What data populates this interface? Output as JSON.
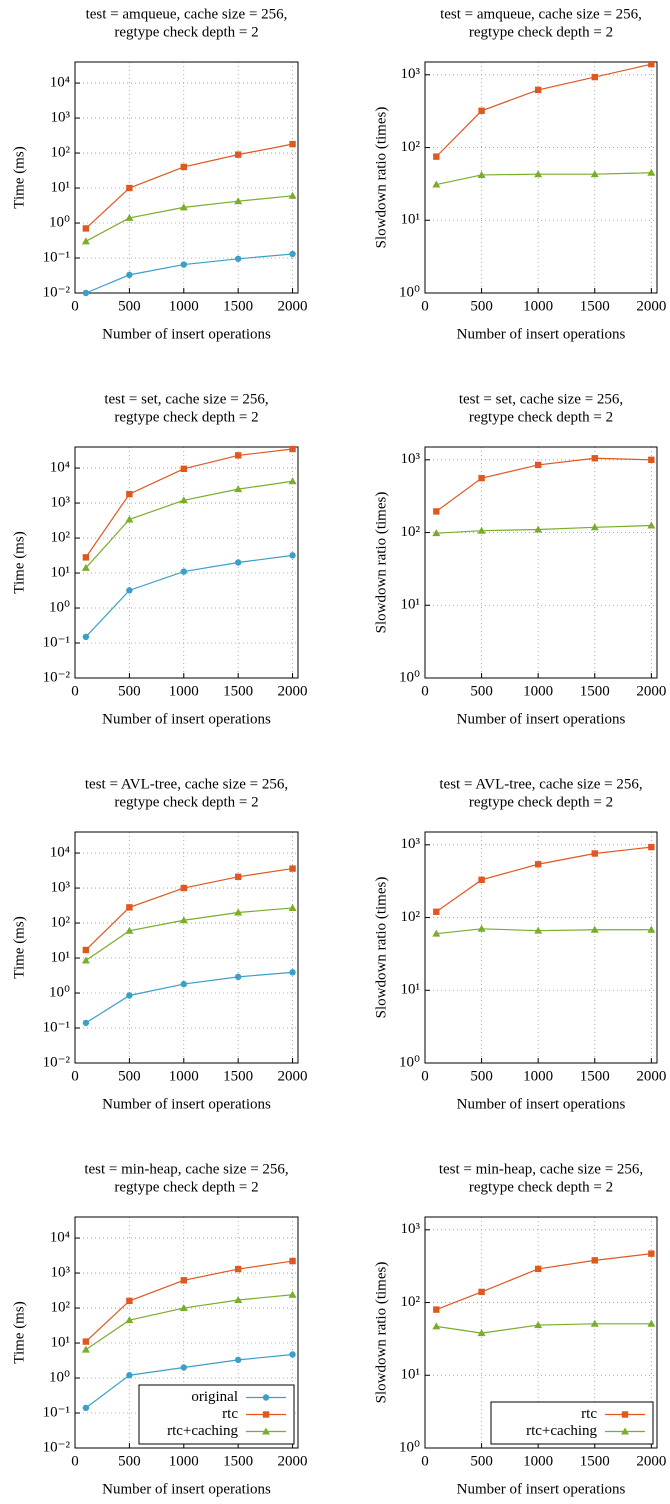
{
  "chart_data": [
    {
      "type": "line",
      "title": [
        "test = amqueue, cache size = 256,",
        "regtype check depth = 2"
      ],
      "xlabel": "Number of insert operations",
      "ylabel": "Time (ms)",
      "log_y": true,
      "grid": true,
      "x": [
        100,
        500,
        1000,
        1500,
        2000
      ],
      "xlim": [
        0,
        2050
      ],
      "xticks": [
        0,
        500,
        1000,
        1500,
        2000
      ],
      "ylim": [
        0.01,
        40000
      ],
      "yticks": [
        {
          "value": 0.01,
          "label": "10⁻²"
        },
        {
          "value": 0.1,
          "label": "10⁻¹"
        },
        {
          "value": 1,
          "label": "10⁰"
        },
        {
          "value": 10,
          "label": "10¹"
        },
        {
          "value": 100,
          "label": "10²"
        },
        {
          "value": 1000,
          "label": "10³"
        },
        {
          "value": 10000,
          "label": "10⁴"
        }
      ],
      "series": [
        {
          "color": "#3a9fc9",
          "marker": "circle",
          "values": [
            0.01,
            0.033,
            0.065,
            0.095,
            0.13
          ]
        },
        {
          "color": "#e0571f",
          "marker": "square",
          "values": [
            0.7,
            10,
            40,
            90,
            180
          ]
        },
        {
          "color": "#7aad2a",
          "marker": "triangle",
          "values": [
            0.3,
            1.4,
            2.8,
            4.2,
            6
          ]
        }
      ]
    },
    {
      "type": "line",
      "title": [
        "test = amqueue, cache size = 256,",
        "regtype check depth = 2"
      ],
      "xlabel": "Number of insert operations",
      "ylabel": "Slowdown ratio (times)",
      "log_y": true,
      "grid": true,
      "x": [
        100,
        500,
        1000,
        1500,
        2000
      ],
      "xlim": [
        0,
        2050
      ],
      "xticks": [
        0,
        500,
        1000,
        1500,
        2000
      ],
      "ylim": [
        1,
        1500
      ],
      "yticks": [
        {
          "value": 1,
          "label": "10⁰"
        },
        {
          "value": 10,
          "label": "10¹"
        },
        {
          "value": 100,
          "label": "10²"
        },
        {
          "value": 1000,
          "label": "10³"
        }
      ],
      "series": [
        {
          "color": "#e0571f",
          "marker": "square",
          "values": [
            75,
            320,
            620,
            930,
            1400
          ]
        },
        {
          "color": "#7aad2a",
          "marker": "triangle",
          "values": [
            31,
            42,
            43,
            43,
            45
          ]
        }
      ]
    },
    {
      "type": "line",
      "title": [
        "test = set, cache size = 256,",
        "regtype check depth = 2"
      ],
      "xlabel": "Number of insert operations",
      "ylabel": "Time (ms)",
      "log_y": true,
      "grid": true,
      "x": [
        100,
        500,
        1000,
        1500,
        2000
      ],
      "xlim": [
        0,
        2050
      ],
      "xticks": [
        0,
        500,
        1000,
        1500,
        2000
      ],
      "ylim": [
        0.01,
        40000
      ],
      "yticks": [
        {
          "value": 0.01,
          "label": "10⁻²"
        },
        {
          "value": 0.1,
          "label": "10⁻¹"
        },
        {
          "value": 1,
          "label": "10⁰"
        },
        {
          "value": 10,
          "label": "10¹"
        },
        {
          "value": 100,
          "label": "10²"
        },
        {
          "value": 1000,
          "label": "10³"
        },
        {
          "value": 10000,
          "label": "10⁴"
        }
      ],
      "series": [
        {
          "color": "#3a9fc9",
          "marker": "circle",
          "values": [
            0.15,
            3.2,
            11,
            20,
            32
          ]
        },
        {
          "color": "#e0571f",
          "marker": "square",
          "values": [
            28,
            1800,
            9500,
            23000,
            35000
          ]
        },
        {
          "color": "#7aad2a",
          "marker": "triangle",
          "values": [
            14,
            340,
            1200,
            2500,
            4200
          ]
        }
      ]
    },
    {
      "type": "line",
      "title": [
        "test = set, cache size = 256,",
        "regtype check depth = 2"
      ],
      "xlabel": "Number of insert operations",
      "ylabel": "Slowdown ratio (times)",
      "log_y": true,
      "grid": true,
      "x": [
        100,
        500,
        1000,
        1500,
        2000
      ],
      "xlim": [
        0,
        2050
      ],
      "xticks": [
        0,
        500,
        1000,
        1500,
        2000
      ],
      "ylim": [
        1,
        1500
      ],
      "yticks": [
        {
          "value": 1,
          "label": "10⁰"
        },
        {
          "value": 10,
          "label": "10¹"
        },
        {
          "value": 100,
          "label": "10²"
        },
        {
          "value": 1000,
          "label": "10³"
        }
      ],
      "series": [
        {
          "color": "#e0571f",
          "marker": "square",
          "values": [
            195,
            560,
            850,
            1050,
            1000
          ]
        },
        {
          "color": "#7aad2a",
          "marker": "triangle",
          "values": [
            98,
            106,
            110,
            118,
            125
          ]
        }
      ]
    },
    {
      "type": "line",
      "title": [
        "test = AVL-tree, cache size = 256,",
        "regtype check depth = 2"
      ],
      "xlabel": "Number of insert operations",
      "ylabel": "Time (ms)",
      "log_y": true,
      "grid": true,
      "x": [
        100,
        500,
        1000,
        1500,
        2000
      ],
      "xlim": [
        0,
        2050
      ],
      "xticks": [
        0,
        500,
        1000,
        1500,
        2000
      ],
      "ylim": [
        0.01,
        40000
      ],
      "yticks": [
        {
          "value": 0.01,
          "label": "10⁻²"
        },
        {
          "value": 0.1,
          "label": "10⁻¹"
        },
        {
          "value": 1,
          "label": "10⁰"
        },
        {
          "value": 10,
          "label": "10¹"
        },
        {
          "value": 100,
          "label": "10²"
        },
        {
          "value": 1000,
          "label": "10³"
        },
        {
          "value": 10000,
          "label": "10⁴"
        }
      ],
      "series": [
        {
          "color": "#3a9fc9",
          "marker": "circle",
          "values": [
            0.14,
            0.85,
            1.8,
            2.9,
            3.9
          ]
        },
        {
          "color": "#e0571f",
          "marker": "square",
          "values": [
            17,
            280,
            1000,
            2100,
            3600
          ]
        },
        {
          "color": "#7aad2a",
          "marker": "triangle",
          "values": [
            8.5,
            60,
            120,
            200,
            270
          ]
        }
      ]
    },
    {
      "type": "line",
      "title": [
        "test = AVL-tree, cache size = 256,",
        "regtype check depth = 2"
      ],
      "xlabel": "Number of insert operations",
      "ylabel": "Slowdown ratio (times)",
      "log_y": true,
      "grid": true,
      "x": [
        100,
        500,
        1000,
        1500,
        2000
      ],
      "xlim": [
        0,
        2050
      ],
      "xticks": [
        0,
        500,
        1000,
        1500,
        2000
      ],
      "ylim": [
        1,
        1500
      ],
      "yticks": [
        {
          "value": 1,
          "label": "10⁰"
        },
        {
          "value": 10,
          "label": "10¹"
        },
        {
          "value": 100,
          "label": "10²"
        },
        {
          "value": 1000,
          "label": "10³"
        }
      ],
      "series": [
        {
          "color": "#e0571f",
          "marker": "square",
          "values": [
            120,
            330,
            540,
            760,
            930
          ]
        },
        {
          "color": "#7aad2a",
          "marker": "triangle",
          "values": [
            60,
            70,
            66,
            68,
            68
          ]
        }
      ]
    },
    {
      "type": "line",
      "title": [
        "test = min-heap, cache size = 256,",
        "regtype check depth = 2"
      ],
      "xlabel": "Number of insert operations",
      "ylabel": "Time (ms)",
      "log_y": true,
      "grid": true,
      "legend": "lower right",
      "x": [
        100,
        500,
        1000,
        1500,
        2000
      ],
      "xlim": [
        0,
        2050
      ],
      "xticks": [
        0,
        500,
        1000,
        1500,
        2000
      ],
      "ylim": [
        0.01,
        40000
      ],
      "yticks": [
        {
          "value": 0.01,
          "label": "10⁻²"
        },
        {
          "value": 0.1,
          "label": "10⁻¹"
        },
        {
          "value": 1,
          "label": "10⁰"
        },
        {
          "value": 10,
          "label": "10¹"
        },
        {
          "value": 100,
          "label": "10²"
        },
        {
          "value": 1000,
          "label": "10³"
        },
        {
          "value": 10000,
          "label": "10⁴"
        }
      ],
      "series": [
        {
          "name": "original",
          "color": "#3a9fc9",
          "marker": "circle",
          "values": [
            0.14,
            1.2,
            2.0,
            3.3,
            4.7
          ]
        },
        {
          "name": "rtc",
          "color": "#e0571f",
          "marker": "square",
          "values": [
            11,
            160,
            620,
            1300,
            2200
          ]
        },
        {
          "name": "rtc+caching",
          "color": "#7aad2a",
          "marker": "triangle",
          "values": [
            6.5,
            45,
            100,
            170,
            240
          ]
        }
      ]
    },
    {
      "type": "line",
      "title": [
        "test = min-heap, cache size = 256,",
        "regtype check depth = 2"
      ],
      "xlabel": "Number of insert operations",
      "ylabel": "Slowdown ratio (times)",
      "log_y": true,
      "grid": true,
      "legend": "lower right",
      "x": [
        100,
        500,
        1000,
        1500,
        2000
      ],
      "xlim": [
        0,
        2050
      ],
      "xticks": [
        0,
        500,
        1000,
        1500,
        2000
      ],
      "ylim": [
        1,
        1500
      ],
      "yticks": [
        {
          "value": 1,
          "label": "10⁰"
        },
        {
          "value": 10,
          "label": "10¹"
        },
        {
          "value": 100,
          "label": "10²"
        },
        {
          "value": 1000,
          "label": "10³"
        }
      ],
      "series": [
        {
          "name": "rtc",
          "color": "#e0571f",
          "marker": "square",
          "values": [
            80,
            140,
            290,
            380,
            470
          ]
        },
        {
          "name": "rtc+caching",
          "color": "#7aad2a",
          "marker": "triangle",
          "values": [
            47,
            38,
            49,
            51,
            51
          ]
        }
      ]
    }
  ]
}
